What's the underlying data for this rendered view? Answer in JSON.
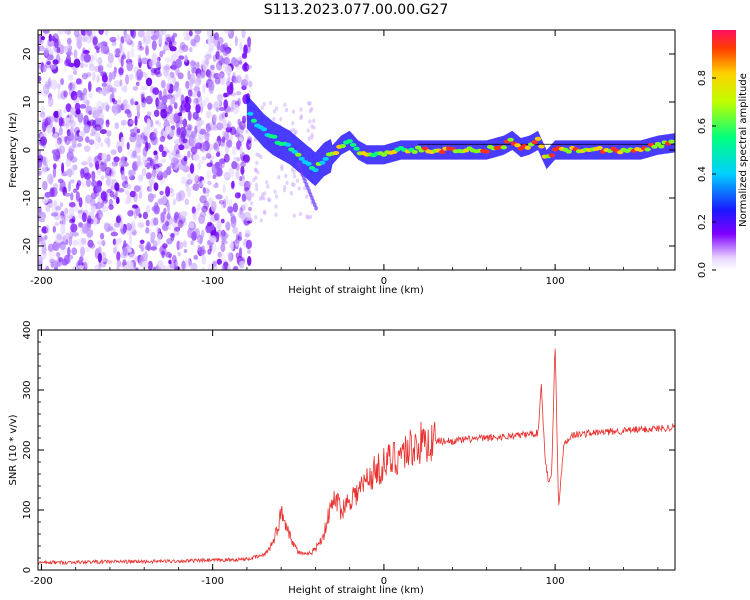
{
  "title": "S113.2023.077.00.00.G27",
  "chart_data": [
    {
      "type": "heatmap",
      "xlabel": "Height of straight line (km)",
      "ylabel": "Frequency (Hz)",
      "xlim": [
        -202,
        170
      ],
      "ylim": [
        -25,
        25
      ],
      "xticks": [
        -200,
        -100,
        0,
        100
      ],
      "yticks": [
        -20,
        -10,
        0,
        10,
        20
      ],
      "ridge": {
        "x": [
          -80,
          -75,
          -70,
          -65,
          -60,
          -55,
          -50,
          -45,
          -40,
          -35,
          -30,
          -25,
          -20,
          -15,
          -10,
          -5,
          0,
          10,
          20,
          30,
          40,
          50,
          60,
          70,
          75,
          80,
          85,
          90,
          95,
          100,
          110,
          120,
          130,
          140,
          150,
          160,
          170
        ],
        "y": [
          8,
          6,
          4,
          2.5,
          1.5,
          0.5,
          -1,
          -2.5,
          -4,
          -2,
          -1,
          1,
          2,
          0,
          -1,
          -1,
          -1,
          0,
          0,
          0,
          0,
          0,
          0,
          1,
          2,
          0.5,
          1,
          2,
          -2,
          0,
          0,
          0,
          0,
          0,
          0,
          1,
          1.5
        ]
      },
      "colorbar": {
        "label": "Normalized spectral amplitude",
        "ticks": [
          0.0,
          0.2,
          0.4,
          0.6,
          0.8
        ],
        "range": [
          0,
          1
        ]
      }
    },
    {
      "type": "line",
      "xlabel": "Height of straight line (km)",
      "ylabel": "SNR (10 * v/v)",
      "xlim": [
        -202,
        170
      ],
      "ylim": [
        0,
        400
      ],
      "xticks": [
        -200,
        -100,
        0,
        100
      ],
      "yticks": [
        0,
        100,
        200,
        300,
        400
      ],
      "color": "#e8302e",
      "series": [
        {
          "x": [
            -202,
            -180,
            -160,
            -140,
            -120,
            -100,
            -80,
            -70,
            -65,
            -62,
            -60,
            -58,
            -55,
            -52,
            -50,
            -45,
            -40,
            -35,
            -32,
            -30,
            -28,
            -25,
            -22,
            -20,
            -15,
            -10,
            -5,
            0,
            10,
            20,
            30,
            40,
            50,
            60,
            70,
            80,
            90,
            92,
            94,
            96,
            98,
            100,
            102,
            105,
            110,
            120,
            130,
            140,
            150,
            160,
            170
          ],
          "y": [
            12,
            13,
            14,
            14,
            15,
            16,
            18,
            25,
            45,
            70,
            95,
            85,
            60,
            40,
            30,
            25,
            35,
            60,
            95,
            110,
            120,
            100,
            110,
            120,
            130,
            150,
            165,
            175,
            195,
            210,
            215,
            215,
            218,
            220,
            222,
            225,
            228,
            310,
            190,
            150,
            160,
            380,
            100,
            210,
            225,
            228,
            230,
            232,
            234,
            236,
            238
          ]
        }
      ]
    }
  ]
}
